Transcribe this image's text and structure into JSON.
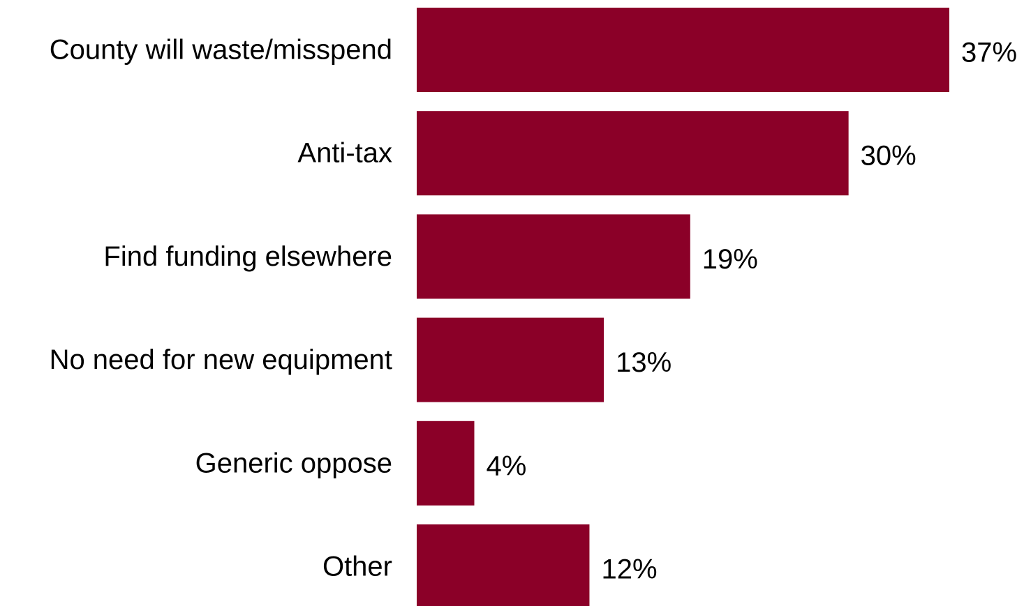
{
  "chart_data": {
    "type": "bar",
    "orientation": "horizontal",
    "title": "",
    "xlabel": "",
    "ylabel": "",
    "categories": [
      "County will waste/misspend",
      "Anti-tax",
      "Find funding elsewhere",
      "No need for new equipment",
      "Generic oppose",
      "Other"
    ],
    "values": [
      37,
      30,
      19,
      13,
      4,
      12
    ],
    "value_labels": [
      "37%",
      "30%",
      "19%",
      "13%",
      "4%",
      "12%"
    ],
    "unit": "%",
    "xlim": [
      0,
      37
    ],
    "grid": false,
    "legend": "none",
    "colors": {
      "bar": "#8b0028",
      "text": "#000000",
      "background": "#ffffff"
    }
  }
}
